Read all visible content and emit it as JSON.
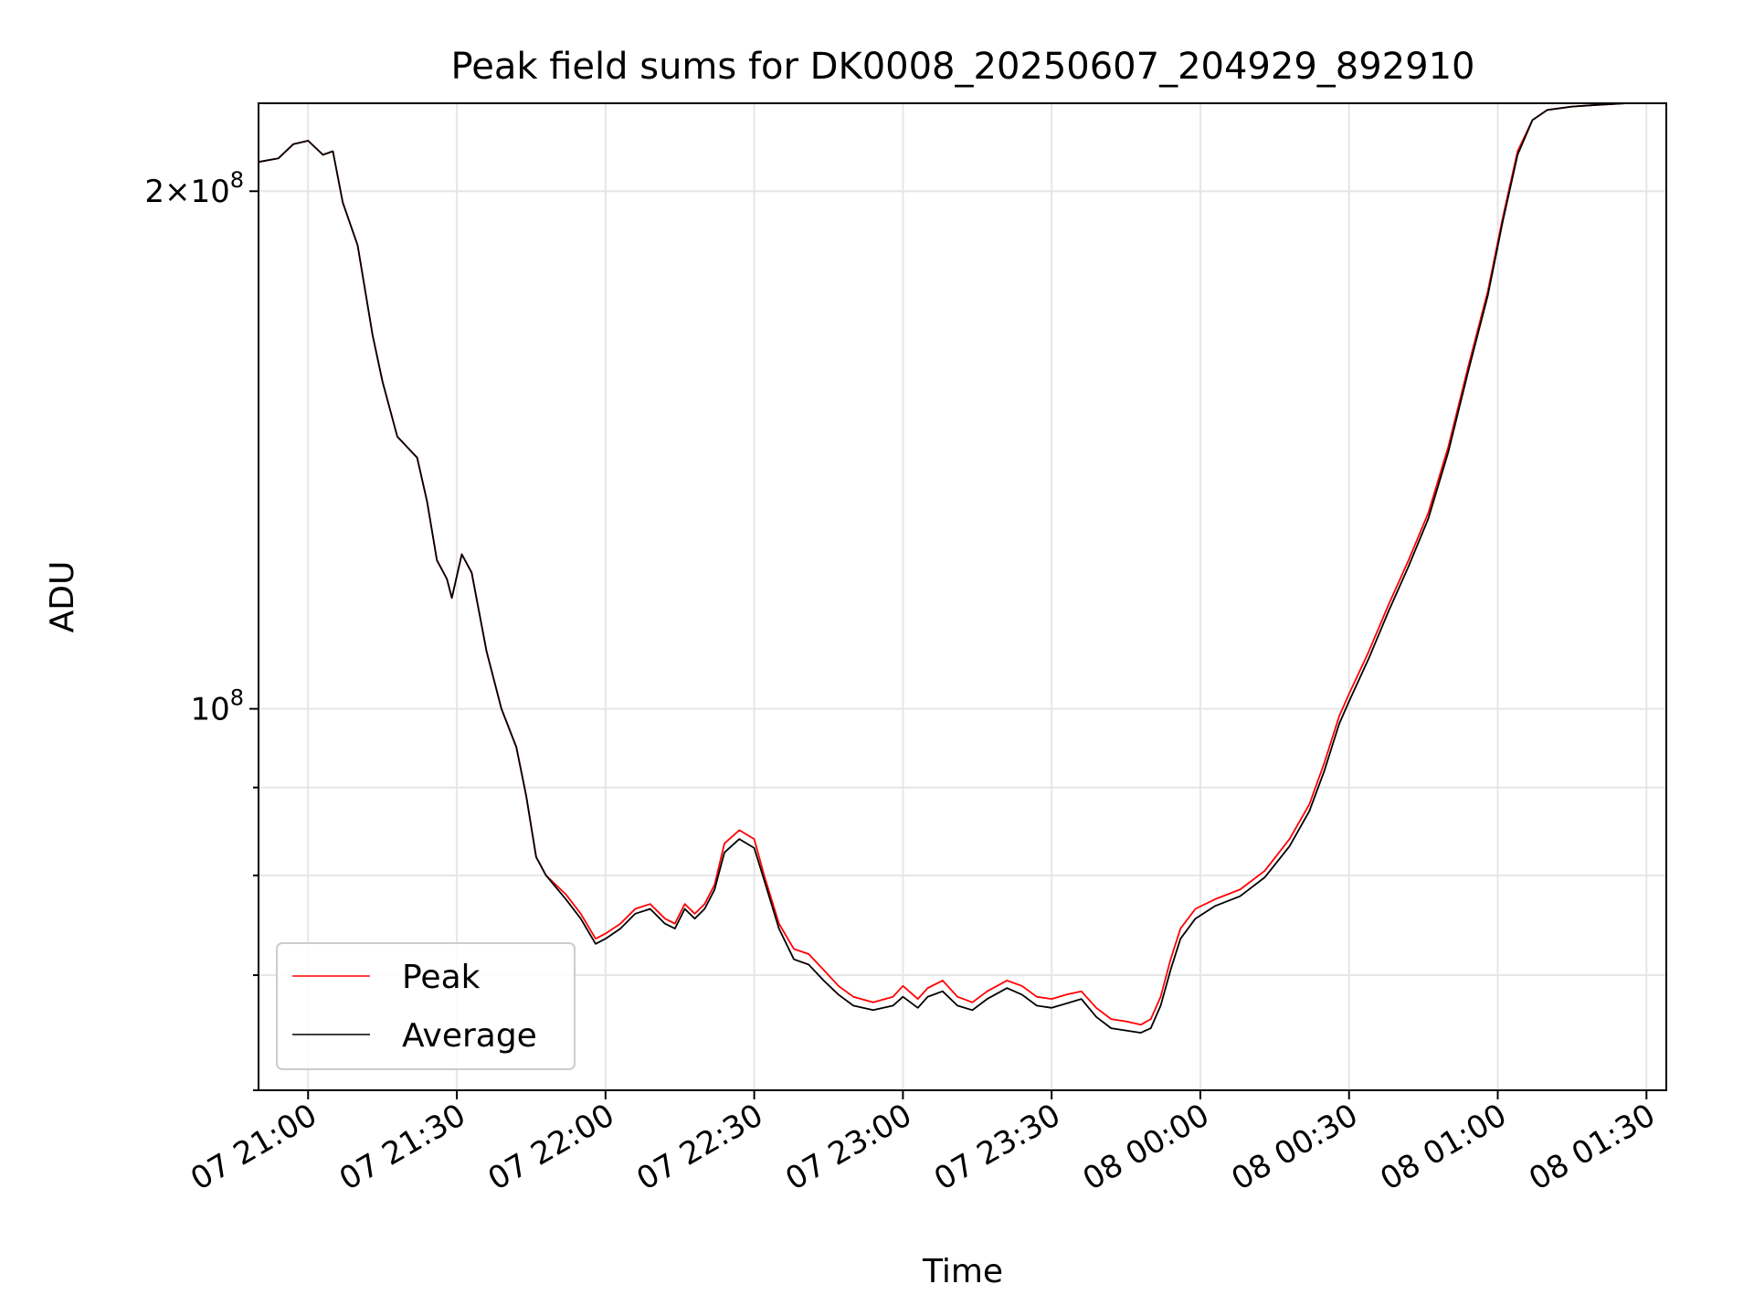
{
  "chart_data": {
    "type": "line",
    "title": "Peak field sums for DK0008_20250607_204929_892910",
    "xlabel": "Time",
    "ylabel": "ADU",
    "yscale": "log",
    "xlim": [
      "2025-06-07T20:50",
      "2025-06-08T01:34"
    ],
    "ylim": [
      60000000.0,
      225000000.0
    ],
    "grid": true,
    "legend_position": "lower-left",
    "x_ticks": [
      {
        "value": "2025-06-07T21:00",
        "label": "07 21:00"
      },
      {
        "value": "2025-06-07T21:30",
        "label": "07 21:30"
      },
      {
        "value": "2025-06-07T22:00",
        "label": "07 22:00"
      },
      {
        "value": "2025-06-07T22:30",
        "label": "07 22:30"
      },
      {
        "value": "2025-06-07T23:00",
        "label": "07 23:00"
      },
      {
        "value": "2025-06-07T23:30",
        "label": "07 23:30"
      },
      {
        "value": "2025-06-08T00:00",
        "label": "08 00:00"
      },
      {
        "value": "2025-06-08T00:30",
        "label": "08 00:30"
      },
      {
        "value": "2025-06-08T01:00",
        "label": "08 01:00"
      },
      {
        "value": "2025-06-08T01:30",
        "label": "08 01:30"
      }
    ],
    "y_major_ticks": [
      {
        "value": 100000000,
        "mant": "",
        "exp": "8"
      },
      {
        "value": 200000000,
        "mant": "2×",
        "exp": "8"
      }
    ],
    "y_minor_ticks": [
      60000000,
      70000000,
      80000000,
      90000000
    ],
    "series": [
      {
        "name": "Peak",
        "color": "#ff0000",
        "points": [
          [
            "2025-06-07T20:50",
            208000000.0
          ],
          [
            "2025-06-07T20:54",
            209000000.0
          ],
          [
            "2025-06-07T20:57",
            213000000.0
          ],
          [
            "2025-06-07T21:00",
            214000000.0
          ],
          [
            "2025-06-07T21:03",
            210000000.0
          ],
          [
            "2025-06-07T21:05",
            211000000.0
          ],
          [
            "2025-06-07T21:07",
            197000000.0
          ],
          [
            "2025-06-07T21:10",
            186000000.0
          ],
          [
            "2025-06-07T21:13",
            165000000.0
          ],
          [
            "2025-06-07T21:15",
            155000000.0
          ],
          [
            "2025-06-07T21:18",
            144000000.0
          ],
          [
            "2025-06-07T21:22",
            140000000.0
          ],
          [
            "2025-06-07T21:24",
            132000000.0
          ],
          [
            "2025-06-07T21:26",
            122000000.0
          ],
          [
            "2025-06-07T21:28",
            119000000.0
          ],
          [
            "2025-06-07T21:29",
            116000000.0
          ],
          [
            "2025-06-07T21:31",
            123000000.0
          ],
          [
            "2025-06-07T21:33",
            120000000.0
          ],
          [
            "2025-06-07T21:36",
            108000000.0
          ],
          [
            "2025-06-07T21:39",
            100000000.0
          ],
          [
            "2025-06-07T21:42",
            95000000.0
          ],
          [
            "2025-06-07T21:44",
            89000000.0
          ],
          [
            "2025-06-07T21:46",
            82000000.0
          ],
          [
            "2025-06-07T21:48",
            80000000.0
          ],
          [
            "2025-06-07T21:52",
            78000000.0
          ],
          [
            "2025-06-07T21:55",
            76000000.0
          ],
          [
            "2025-06-07T21:58",
            73500000.0
          ],
          [
            "2025-06-07T22:00",
            74000000.0
          ],
          [
            "2025-06-07T22:03",
            75000000.0
          ],
          [
            "2025-06-07T22:06",
            76500000.0
          ],
          [
            "2025-06-07T22:09",
            77000000.0
          ],
          [
            "2025-06-07T22:12",
            75500000.0
          ],
          [
            "2025-06-07T22:14",
            75000000.0
          ],
          [
            "2025-06-07T22:16",
            77000000.0
          ],
          [
            "2025-06-07T22:18",
            76000000.0
          ],
          [
            "2025-06-07T22:20",
            77000000.0
          ],
          [
            "2025-06-07T22:22",
            79000000.0
          ],
          [
            "2025-06-07T22:24",
            83500000.0
          ],
          [
            "2025-06-07T22:27",
            85000000.0
          ],
          [
            "2025-06-07T22:30",
            84000000.0
          ],
          [
            "2025-06-07T22:32",
            80000000.0
          ],
          [
            "2025-06-07T22:35",
            75000000.0
          ],
          [
            "2025-06-07T22:38",
            72500000.0
          ],
          [
            "2025-06-07T22:41",
            72000000.0
          ],
          [
            "2025-06-07T22:44",
            70500000.0
          ],
          [
            "2025-06-07T22:47",
            69000000.0
          ],
          [
            "2025-06-07T22:50",
            68000000.0
          ],
          [
            "2025-06-07T22:54",
            67500000.0
          ],
          [
            "2025-06-07T22:58",
            68000000.0
          ],
          [
            "2025-06-07T23:00",
            69000000.0
          ],
          [
            "2025-06-07T23:03",
            67800000.0
          ],
          [
            "2025-06-07T23:05",
            68800000.0
          ],
          [
            "2025-06-07T23:08",
            69500000.0
          ],
          [
            "2025-06-07T23:11",
            68000000.0
          ],
          [
            "2025-06-07T23:14",
            67500000.0
          ],
          [
            "2025-06-07T23:17",
            68500000.0
          ],
          [
            "2025-06-07T23:21",
            69500000.0
          ],
          [
            "2025-06-07T23:24",
            69000000.0
          ],
          [
            "2025-06-07T23:27",
            68000000.0
          ],
          [
            "2025-06-07T23:30",
            67800000.0
          ],
          [
            "2025-06-07T23:33",
            68200000.0
          ],
          [
            "2025-06-07T23:36",
            68500000.0
          ],
          [
            "2025-06-07T23:39",
            67000000.0
          ],
          [
            "2025-06-07T23:42",
            66000000.0
          ],
          [
            "2025-06-07T23:45",
            65800000.0
          ],
          [
            "2025-06-07T23:48",
            65500000.0
          ],
          [
            "2025-06-07T23:50",
            66000000.0
          ],
          [
            "2025-06-07T23:52",
            68000000.0
          ],
          [
            "2025-06-07T23:54",
            71500000.0
          ],
          [
            "2025-06-07T23:56",
            74500000.0
          ],
          [
            "2025-06-07T23:59",
            76500000.0
          ],
          [
            "2025-06-08T00:03",
            77500000.0
          ],
          [
            "2025-06-08T00:08",
            78500000.0
          ],
          [
            "2025-06-08T00:13",
            80500000.0
          ],
          [
            "2025-06-08T00:18",
            84000000.0
          ],
          [
            "2025-06-08T00:22",
            88000000.0
          ],
          [
            "2025-06-08T00:25",
            93000000.0
          ],
          [
            "2025-06-08T00:28",
            99000000.0
          ],
          [
            "2025-06-08T00:30",
            102000000.0
          ],
          [
            "2025-06-08T00:34",
            108000000.0
          ],
          [
            "2025-06-08T00:38",
            115000000.0
          ],
          [
            "2025-06-08T00:42",
            122000000.0
          ],
          [
            "2025-06-08T00:46",
            130000000.0
          ],
          [
            "2025-06-08T00:50",
            142000000.0
          ],
          [
            "2025-06-08T00:54",
            158000000.0
          ],
          [
            "2025-06-08T00:58",
            175000000.0
          ],
          [
            "2025-06-08T01:01",
            193000000.0
          ],
          [
            "2025-06-08T01:04",
            211000000.0
          ],
          [
            "2025-06-08T01:07",
            220000000.0
          ],
          [
            "2025-06-08T01:10",
            223000000.0
          ],
          [
            "2025-06-08T01:15",
            224000000.0
          ],
          [
            "2025-06-08T01:20",
            224500000.0
          ],
          [
            "2025-06-08T01:26",
            225000000.0
          ],
          [
            "2025-06-08T01:33",
            225000000.0
          ]
        ]
      },
      {
        "name": "Average",
        "color": "#000000",
        "points": [
          [
            "2025-06-07T20:50",
            208000000.0
          ],
          [
            "2025-06-07T20:54",
            209000000.0
          ],
          [
            "2025-06-07T20:57",
            213000000.0
          ],
          [
            "2025-06-07T21:00",
            214000000.0
          ],
          [
            "2025-06-07T21:03",
            210000000.0
          ],
          [
            "2025-06-07T21:05",
            211000000.0
          ],
          [
            "2025-06-07T21:07",
            197000000.0
          ],
          [
            "2025-06-07T21:10",
            186000000.0
          ],
          [
            "2025-06-07T21:13",
            165000000.0
          ],
          [
            "2025-06-07T21:15",
            155000000.0
          ],
          [
            "2025-06-07T21:18",
            144000000.0
          ],
          [
            "2025-06-07T21:22",
            140000000.0
          ],
          [
            "2025-06-07T21:24",
            132000000.0
          ],
          [
            "2025-06-07T21:26",
            122000000.0
          ],
          [
            "2025-06-07T21:28",
            119000000.0
          ],
          [
            "2025-06-07T21:29",
            116000000.0
          ],
          [
            "2025-06-07T21:31",
            123000000.0
          ],
          [
            "2025-06-07T21:33",
            120000000.0
          ],
          [
            "2025-06-07T21:36",
            108000000.0
          ],
          [
            "2025-06-07T21:39",
            100000000.0
          ],
          [
            "2025-06-07T21:42",
            95000000.0
          ],
          [
            "2025-06-07T21:44",
            89000000.0
          ],
          [
            "2025-06-07T21:46",
            82000000.0
          ],
          [
            "2025-06-07T21:48",
            80000000.0
          ],
          [
            "2025-06-07T21:52",
            77500000.0
          ],
          [
            "2025-06-07T21:55",
            75500000.0
          ],
          [
            "2025-06-07T21:58",
            73000000.0
          ],
          [
            "2025-06-07T22:00",
            73500000.0
          ],
          [
            "2025-06-07T22:03",
            74500000.0
          ],
          [
            "2025-06-07T22:06",
            76000000.0
          ],
          [
            "2025-06-07T22:09",
            76500000.0
          ],
          [
            "2025-06-07T22:12",
            75000000.0
          ],
          [
            "2025-06-07T22:14",
            74500000.0
          ],
          [
            "2025-06-07T22:16",
            76500000.0
          ],
          [
            "2025-06-07T22:18",
            75500000.0
          ],
          [
            "2025-06-07T22:20",
            76500000.0
          ],
          [
            "2025-06-07T22:22",
            78500000.0
          ],
          [
            "2025-06-07T22:24",
            82500000.0
          ],
          [
            "2025-06-07T22:27",
            84000000.0
          ],
          [
            "2025-06-07T22:30",
            83000000.0
          ],
          [
            "2025-06-07T22:32",
            79500000.0
          ],
          [
            "2025-06-07T22:35",
            74500000.0
          ],
          [
            "2025-06-07T22:38",
            71500000.0
          ],
          [
            "2025-06-07T22:41",
            71000000.0
          ],
          [
            "2025-06-07T22:44",
            69500000.0
          ],
          [
            "2025-06-07T22:47",
            68200000.0
          ],
          [
            "2025-06-07T22:50",
            67200000.0
          ],
          [
            "2025-06-07T22:54",
            66800000.0
          ],
          [
            "2025-06-07T22:58",
            67200000.0
          ],
          [
            "2025-06-07T23:00",
            68000000.0
          ],
          [
            "2025-06-07T23:03",
            67000000.0
          ],
          [
            "2025-06-07T23:05",
            68000000.0
          ],
          [
            "2025-06-07T23:08",
            68500000.0
          ],
          [
            "2025-06-07T23:11",
            67200000.0
          ],
          [
            "2025-06-07T23:14",
            66800000.0
          ],
          [
            "2025-06-07T23:17",
            67800000.0
          ],
          [
            "2025-06-07T23:21",
            68800000.0
          ],
          [
            "2025-06-07T23:24",
            68200000.0
          ],
          [
            "2025-06-07T23:27",
            67200000.0
          ],
          [
            "2025-06-07T23:30",
            67000000.0
          ],
          [
            "2025-06-07T23:33",
            67400000.0
          ],
          [
            "2025-06-07T23:36",
            67800000.0
          ],
          [
            "2025-06-07T23:39",
            66200000.0
          ],
          [
            "2025-06-07T23:42",
            65200000.0
          ],
          [
            "2025-06-07T23:45",
            65000000.0
          ],
          [
            "2025-06-07T23:48",
            64800000.0
          ],
          [
            "2025-06-07T23:50",
            65200000.0
          ],
          [
            "2025-06-07T23:52",
            67200000.0
          ],
          [
            "2025-06-07T23:54",
            70500000.0
          ],
          [
            "2025-06-07T23:56",
            73500000.0
          ],
          [
            "2025-06-07T23:59",
            75500000.0
          ],
          [
            "2025-06-08T00:03",
            76800000.0
          ],
          [
            "2025-06-08T00:08",
            77800000.0
          ],
          [
            "2025-06-08T00:13",
            79800000.0
          ],
          [
            "2025-06-08T00:18",
            83200000.0
          ],
          [
            "2025-06-08T00:22",
            87200000.0
          ],
          [
            "2025-06-08T00:25",
            92000000.0
          ],
          [
            "2025-06-08T00:28",
            98000000.0
          ],
          [
            "2025-06-08T00:30",
            101000000.0
          ],
          [
            "2025-06-08T00:34",
            107000000.0
          ],
          [
            "2025-06-08T00:38",
            114000000.0
          ],
          [
            "2025-06-08T00:42",
            121000000.0
          ],
          [
            "2025-06-08T00:46",
            129000000.0
          ],
          [
            "2025-06-08T00:50",
            141000000.0
          ],
          [
            "2025-06-08T00:54",
            157000000.0
          ],
          [
            "2025-06-08T00:58",
            174000000.0
          ],
          [
            "2025-06-08T01:01",
            192000000.0
          ],
          [
            "2025-06-08T01:04",
            210000000.0
          ],
          [
            "2025-06-08T01:07",
            220000000.0
          ],
          [
            "2025-06-08T01:10",
            223000000.0
          ],
          [
            "2025-06-08T01:15",
            224000000.0
          ],
          [
            "2025-06-08T01:20",
            224500000.0
          ],
          [
            "2025-06-08T01:26",
            225000000.0
          ],
          [
            "2025-06-08T01:33",
            225000000.0
          ]
        ]
      }
    ]
  }
}
